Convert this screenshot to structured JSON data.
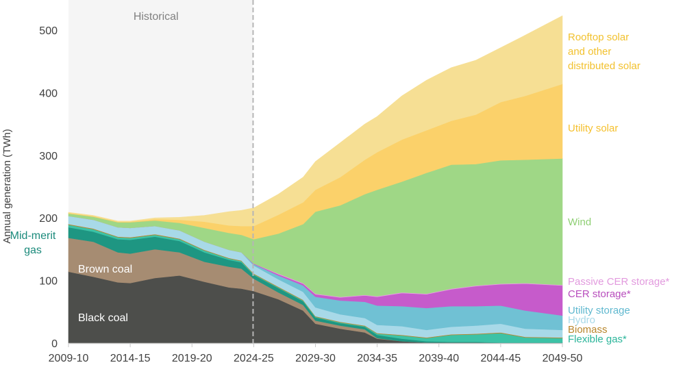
{
  "chart_data": {
    "type": "area",
    "stacked": true,
    "title": "",
    "ylabel": "Annual generation (TWh)",
    "xlabel": "",
    "ylim": [
      0,
      500
    ],
    "yticks": [
      0,
      100,
      200,
      300,
      400,
      500
    ],
    "xtick_labels": [
      "2009-10",
      "2014-15",
      "2019-20",
      "2024-25",
      "2029-30",
      "2034-35",
      "2039-40",
      "2044-45",
      "2049-50"
    ],
    "grid": false,
    "shaded_region": {
      "label": "Historical",
      "from": "2009-10",
      "to": "2023-24"
    },
    "x": [
      "2009-10",
      "2011-12",
      "2013-14",
      "2014-15",
      "2016-17",
      "2018-19",
      "2020-21",
      "2022-23",
      "2023-24",
      "2024-25",
      "2026-27",
      "2028-29",
      "2029-30",
      "2031-32",
      "2033-34",
      "2034-35",
      "2036-37",
      "2038-39",
      "2040-41",
      "2042-43",
      "2044-45",
      "2046-47",
      "2049-50"
    ],
    "series": [
      {
        "name": "Black coal",
        "color": "#4d4e4b",
        "label_color": "#ffffff",
        "values": [
          114,
          106,
          97,
          96,
          104,
          108,
          98,
          89,
          87,
          83,
          70,
          52,
          31,
          23,
          17,
          7,
          3,
          1,
          1,
          1,
          0,
          0,
          0
        ]
      },
      {
        "name": "Brown coal",
        "color": "#a68c72",
        "label_color": "#ffffff",
        "values": [
          54,
          56,
          48,
          47,
          46,
          37,
          32,
          33,
          32,
          20,
          11,
          9,
          5,
          5,
          5,
          1,
          0,
          0,
          0,
          0,
          0,
          0,
          0
        ]
      },
      {
        "name": "Mid-merit gas",
        "color": "#1e9682",
        "label_color": "#1b8a7b",
        "values": [
          17,
          16,
          21,
          22,
          20,
          18,
          15,
          11,
          10,
          6,
          7,
          6,
          5,
          4,
          4,
          5,
          4,
          2,
          1,
          1,
          1,
          1,
          1
        ]
      },
      {
        "name": "Flexible gas*",
        "color": "#3cc2a6",
        "label_color": "#2bb59a",
        "values": [
          4,
          4,
          3,
          3,
          3,
          3,
          3,
          2,
          2,
          1,
          1,
          1,
          1,
          1,
          1,
          2,
          5,
          5,
          11,
          12,
          15,
          8,
          7
        ]
      },
      {
        "name": "Biomass",
        "color": "#b8862b",
        "label_color": "#b8862b",
        "values": [
          1,
          1,
          1,
          1,
          1,
          1,
          1,
          1,
          1,
          1,
          1,
          1,
          1,
          1,
          1,
          1,
          1,
          1,
          1,
          1,
          1,
          1,
          1
        ]
      },
      {
        "name": "Hydro",
        "color": "#a8d9e8",
        "label_color": "#a8d9e8",
        "values": [
          13,
          14,
          15,
          15,
          13,
          13,
          13,
          13,
          13,
          13,
          12,
          13,
          14,
          12,
          12,
          13,
          14,
          12,
          12,
          13,
          14,
          13,
          12
        ]
      },
      {
        "name": "Utility storage",
        "color": "#70c1d4",
        "label_color": "#5fb8cf",
        "values": [
          0,
          0,
          0,
          0,
          0,
          0,
          0,
          0,
          0,
          2,
          6,
          10,
          17,
          22,
          26,
          31,
          32,
          35,
          33,
          31,
          29,
          29,
          23
        ]
      },
      {
        "name": "CER storage*",
        "color": "#c65bcb",
        "label_color": "#b84dbd",
        "values": [
          0,
          0,
          0,
          0,
          0,
          0,
          0,
          0,
          0,
          1,
          2,
          3,
          4,
          5,
          10,
          14,
          21,
          22,
          27,
          32,
          34,
          43,
          48
        ]
      },
      {
        "name": "Passive CER storage*",
        "color": "#e7a0e2",
        "label_color": "#e29ade",
        "values": [
          0,
          0,
          0,
          0,
          0,
          0,
          0,
          0,
          0,
          0,
          1,
          1,
          1,
          1,
          1,
          1,
          1,
          1,
          1,
          1,
          1,
          1,
          1
        ]
      },
      {
        "name": "Wind",
        "color": "#9fd786",
        "label_color": "#8fcf74",
        "values": [
          4,
          5,
          8,
          9,
          9,
          12,
          22,
          27,
          28,
          39,
          64,
          94,
          131,
          146,
          161,
          170,
          177,
          193,
          198,
          194,
          197,
          197,
          202
        ]
      },
      {
        "name": "Utility solar",
        "color": "#fbd16a",
        "label_color": "#f5c02e",
        "values": [
          1,
          1,
          1,
          1,
          2,
          5,
          10,
          12,
          14,
          21,
          30,
          35,
          35,
          45,
          55,
          60,
          67,
          68,
          70,
          79,
          93,
          102,
          119
        ]
      },
      {
        "name": "Rooftop solar and other distributed solar",
        "color": "#f6df94",
        "label_color": "#f2c12e",
        "label_lines": [
          "Rooftop solar",
          "and other",
          "distributed solar"
        ],
        "values": [
          1,
          1,
          1,
          1,
          2,
          4,
          10,
          22,
          25,
          29,
          33,
          40,
          45,
          55,
          57,
          57,
          70,
          80,
          85,
          87,
          87,
          97,
          109
        ]
      }
    ]
  }
}
